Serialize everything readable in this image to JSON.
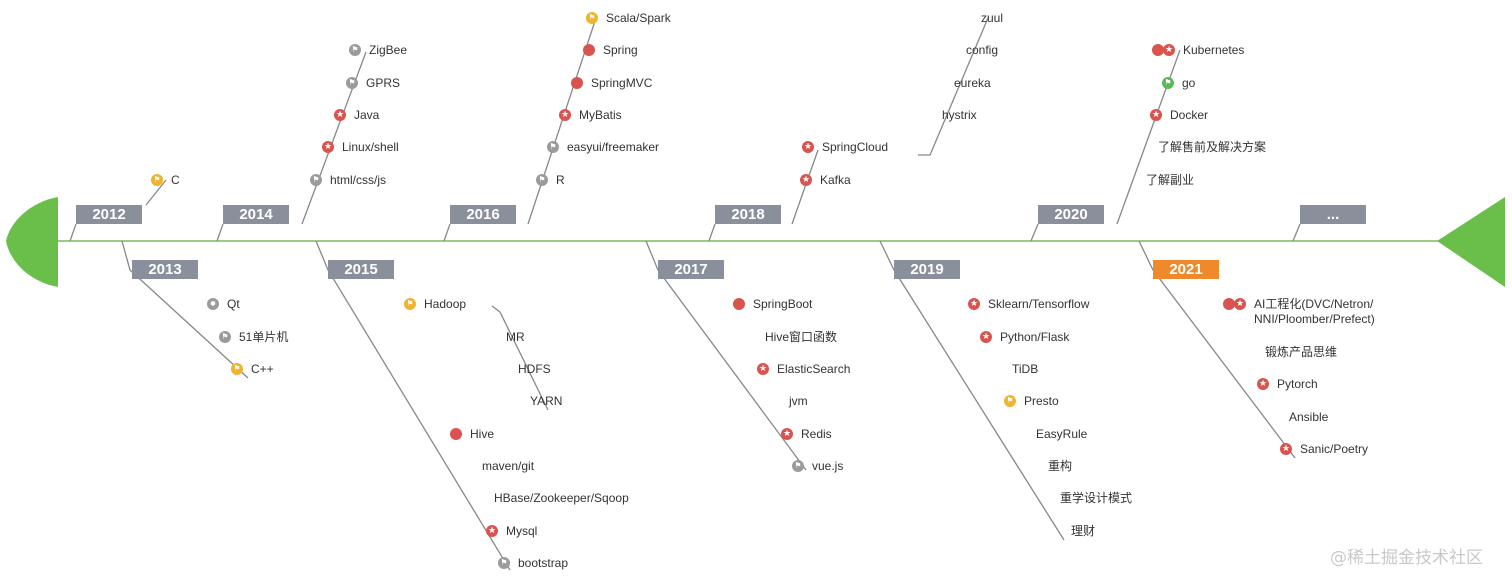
{
  "colors": {
    "axis": "#7cba5a",
    "head": "#6abf4b",
    "year_box": "#8a8f9c",
    "year_box_highlight": "#ee8a2c",
    "branch_line": "#888888",
    "dot_red": "#d9534f",
    "flag_gray": "#9b9b9b",
    "flag_yellow": "#f0b32e",
    "flag_green": "#5cb85c"
  },
  "years": [
    {
      "label": "2012",
      "highlight": false,
      "items": [
        {
          "text": "C",
          "icons": [
            "flag-yellow"
          ]
        }
      ]
    },
    {
      "label": "2013",
      "highlight": false,
      "items": [
        {
          "text": "Qt",
          "icons": [
            "user-gray"
          ]
        },
        {
          "text": "51单片机",
          "icons": [
            "flag-gray"
          ]
        },
        {
          "text": "C++",
          "icons": [
            "flag-yellow"
          ]
        }
      ]
    },
    {
      "label": "2014",
      "highlight": false,
      "items": [
        {
          "text": "ZigBee",
          "icons": [
            "flag-gray"
          ]
        },
        {
          "text": "GPRS",
          "icons": [
            "flag-gray"
          ]
        },
        {
          "text": "Java",
          "icons": [
            "star"
          ]
        },
        {
          "text": "Linux/shell",
          "icons": [
            "star"
          ]
        },
        {
          "text": "html/css/js",
          "icons": [
            "flag-gray"
          ]
        }
      ]
    },
    {
      "label": "2015",
      "highlight": false,
      "items": [
        {
          "text": "Hadoop",
          "icons": [
            "flag-yellow"
          ]
        },
        {
          "text": "MR",
          "icons": []
        },
        {
          "text": "HDFS",
          "icons": []
        },
        {
          "text": "YARN",
          "icons": []
        },
        {
          "text": "Hive",
          "icons": [
            "dot"
          ]
        },
        {
          "text": "maven/git",
          "icons": []
        },
        {
          "text": "HBase/Zookeeper/Sqoop",
          "icons": []
        },
        {
          "text": "Mysql",
          "icons": [
            "star"
          ]
        },
        {
          "text": "bootstrap",
          "icons": [
            "flag-gray"
          ]
        }
      ]
    },
    {
      "label": "2016",
      "highlight": false,
      "items": [
        {
          "text": "Scala/Spark",
          "icons": [
            "flag-yellow"
          ]
        },
        {
          "text": "Spring",
          "icons": [
            "dot"
          ]
        },
        {
          "text": "SpringMVC",
          "icons": [
            "dot"
          ]
        },
        {
          "text": "MyBatis",
          "icons": [
            "star"
          ]
        },
        {
          "text": "easyui/freemaker",
          "icons": [
            "flag-gray"
          ]
        },
        {
          "text": "R",
          "icons": [
            "flag-gray"
          ]
        }
      ]
    },
    {
      "label": "2017",
      "highlight": false,
      "items": [
        {
          "text": "SpringBoot",
          "icons": [
            "dot"
          ]
        },
        {
          "text": "Hive窗口函数",
          "icons": []
        },
        {
          "text": "ElasticSearch",
          "icons": [
            "star"
          ]
        },
        {
          "text": "jvm",
          "icons": []
        },
        {
          "text": "Redis",
          "icons": [
            "star"
          ]
        },
        {
          "text": "vue.js",
          "icons": [
            "flag-gray"
          ]
        }
      ]
    },
    {
      "label": "2018",
      "highlight": false,
      "items": [
        {
          "text": "zuul",
          "icons": []
        },
        {
          "text": "config",
          "icons": []
        },
        {
          "text": "eureka",
          "icons": []
        },
        {
          "text": "hystrix",
          "icons": []
        },
        {
          "text": "SpringCloud",
          "icons": [
            "star"
          ]
        },
        {
          "text": "Kafka",
          "icons": [
            "star"
          ]
        }
      ]
    },
    {
      "label": "2019",
      "highlight": false,
      "items": [
        {
          "text": "Sklearn/Tensorflow",
          "icons": [
            "star"
          ]
        },
        {
          "text": "Python/Flask",
          "icons": [
            "star"
          ]
        },
        {
          "text": "TiDB",
          "icons": []
        },
        {
          "text": "Presto",
          "icons": [
            "flag-yellow"
          ]
        },
        {
          "text": "EasyRule",
          "icons": []
        },
        {
          "text": "重构",
          "icons": []
        },
        {
          "text": "重学设计模式",
          "icons": []
        },
        {
          "text": "理财",
          "icons": []
        }
      ]
    },
    {
      "label": "2020",
      "highlight": false,
      "items": [
        {
          "text": "Kubernetes",
          "icons": [
            "dot",
            "star"
          ]
        },
        {
          "text": "go",
          "icons": [
            "flag-green"
          ]
        },
        {
          "text": "Docker",
          "icons": [
            "star"
          ]
        },
        {
          "text": "了解售前及解决方案",
          "icons": []
        },
        {
          "text": "了解副业",
          "icons": []
        }
      ]
    },
    {
      "label": "2021",
      "highlight": true,
      "items": [
        {
          "text": "AI工程化(DVC/Netron/\nNNI/Ploomber/Prefect)",
          "icons": [
            "dot",
            "star"
          ]
        },
        {
          "text": "锻炼产品思维",
          "icons": []
        },
        {
          "text": "Pytorch",
          "icons": [
            "star"
          ]
        },
        {
          "text": "Ansible",
          "icons": []
        },
        {
          "text": "Sanic/Poetry",
          "icons": [
            "star"
          ]
        }
      ]
    },
    {
      "label": "...",
      "highlight": false,
      "items": []
    }
  ],
  "watermark": "@稀土掘金技术社区"
}
